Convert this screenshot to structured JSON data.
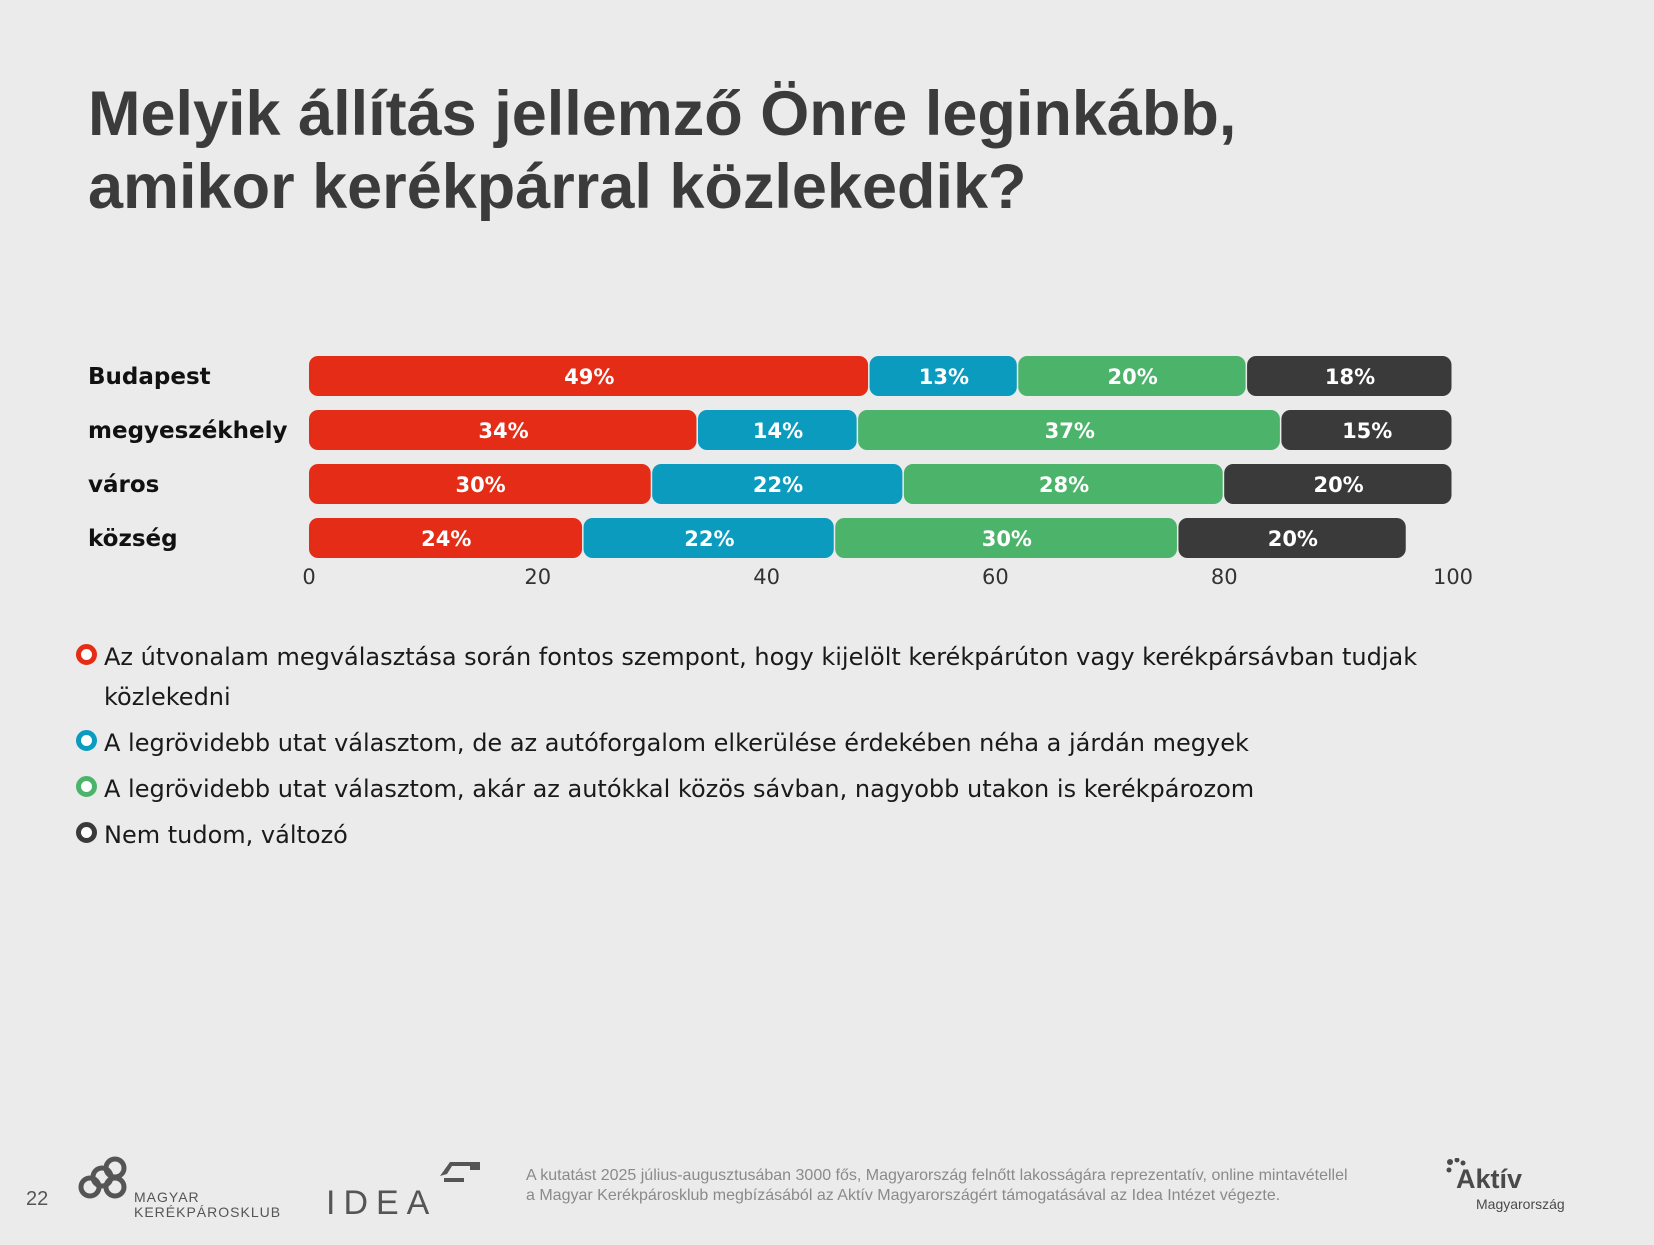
{
  "title": {
    "line1": "Melyik állítás jellemző Önre leginkább,",
    "line2": "amikor kerékpárral közlekedik?"
  },
  "chart_data": {
    "type": "bar",
    "orientation": "horizontal",
    "stacked": true,
    "categories": [
      "Budapest",
      "megyeszékhely",
      "város",
      "község"
    ],
    "series": [
      {
        "name": "Az útvonalam megválasztása során fontos szempont, hogy kijelölt kerékpárúton vagy kerékpársávban tudjak közlekedni",
        "color": "#e42c17",
        "values": [
          49,
          34,
          30,
          24
        ]
      },
      {
        "name": "A legrövidebb utat választom, de az autóforgalom elkerülése érdekében néha a járdán megyek",
        "color": "#0a9bbf",
        "values": [
          13,
          14,
          22,
          22
        ]
      },
      {
        "name": "A legrövidebb utat választom, akár az autókkal közös sávban, nagyobb utakon is kerékpározom",
        "color": "#4cb36b",
        "values": [
          20,
          37,
          28,
          30
        ]
      },
      {
        "name": "Nem tudom, változó",
        "color": "#3a3a3a",
        "values": [
          18,
          15,
          20,
          20
        ]
      }
    ],
    "data_label_suffix": "%",
    "xlim": [
      0,
      100
    ],
    "xticks": [
      "0",
      "20",
      "40",
      "60",
      "80",
      "100"
    ],
    "grid": false,
    "legend_position": "bottom"
  },
  "footer": {
    "page_number": "22",
    "mkk_logo_line1": "MAGYAR",
    "mkk_logo_line2": "KERÉKPÁROSKLUB",
    "idea_logo": "IDEA",
    "note_line1": "A kutatást 2025 július-augusztusában 3000 fős, Magyarország felnőtt lakosságára reprezentatív, online mintavétellel",
    "note_line2": "a Magyar Kerékpárosklub megbízásából az Aktív Magyarországért támogatásával az Idea Intézet végezte.",
    "aktiv_logo_name": "Aktív",
    "aktiv_logo_sub": "Magyarország"
  }
}
